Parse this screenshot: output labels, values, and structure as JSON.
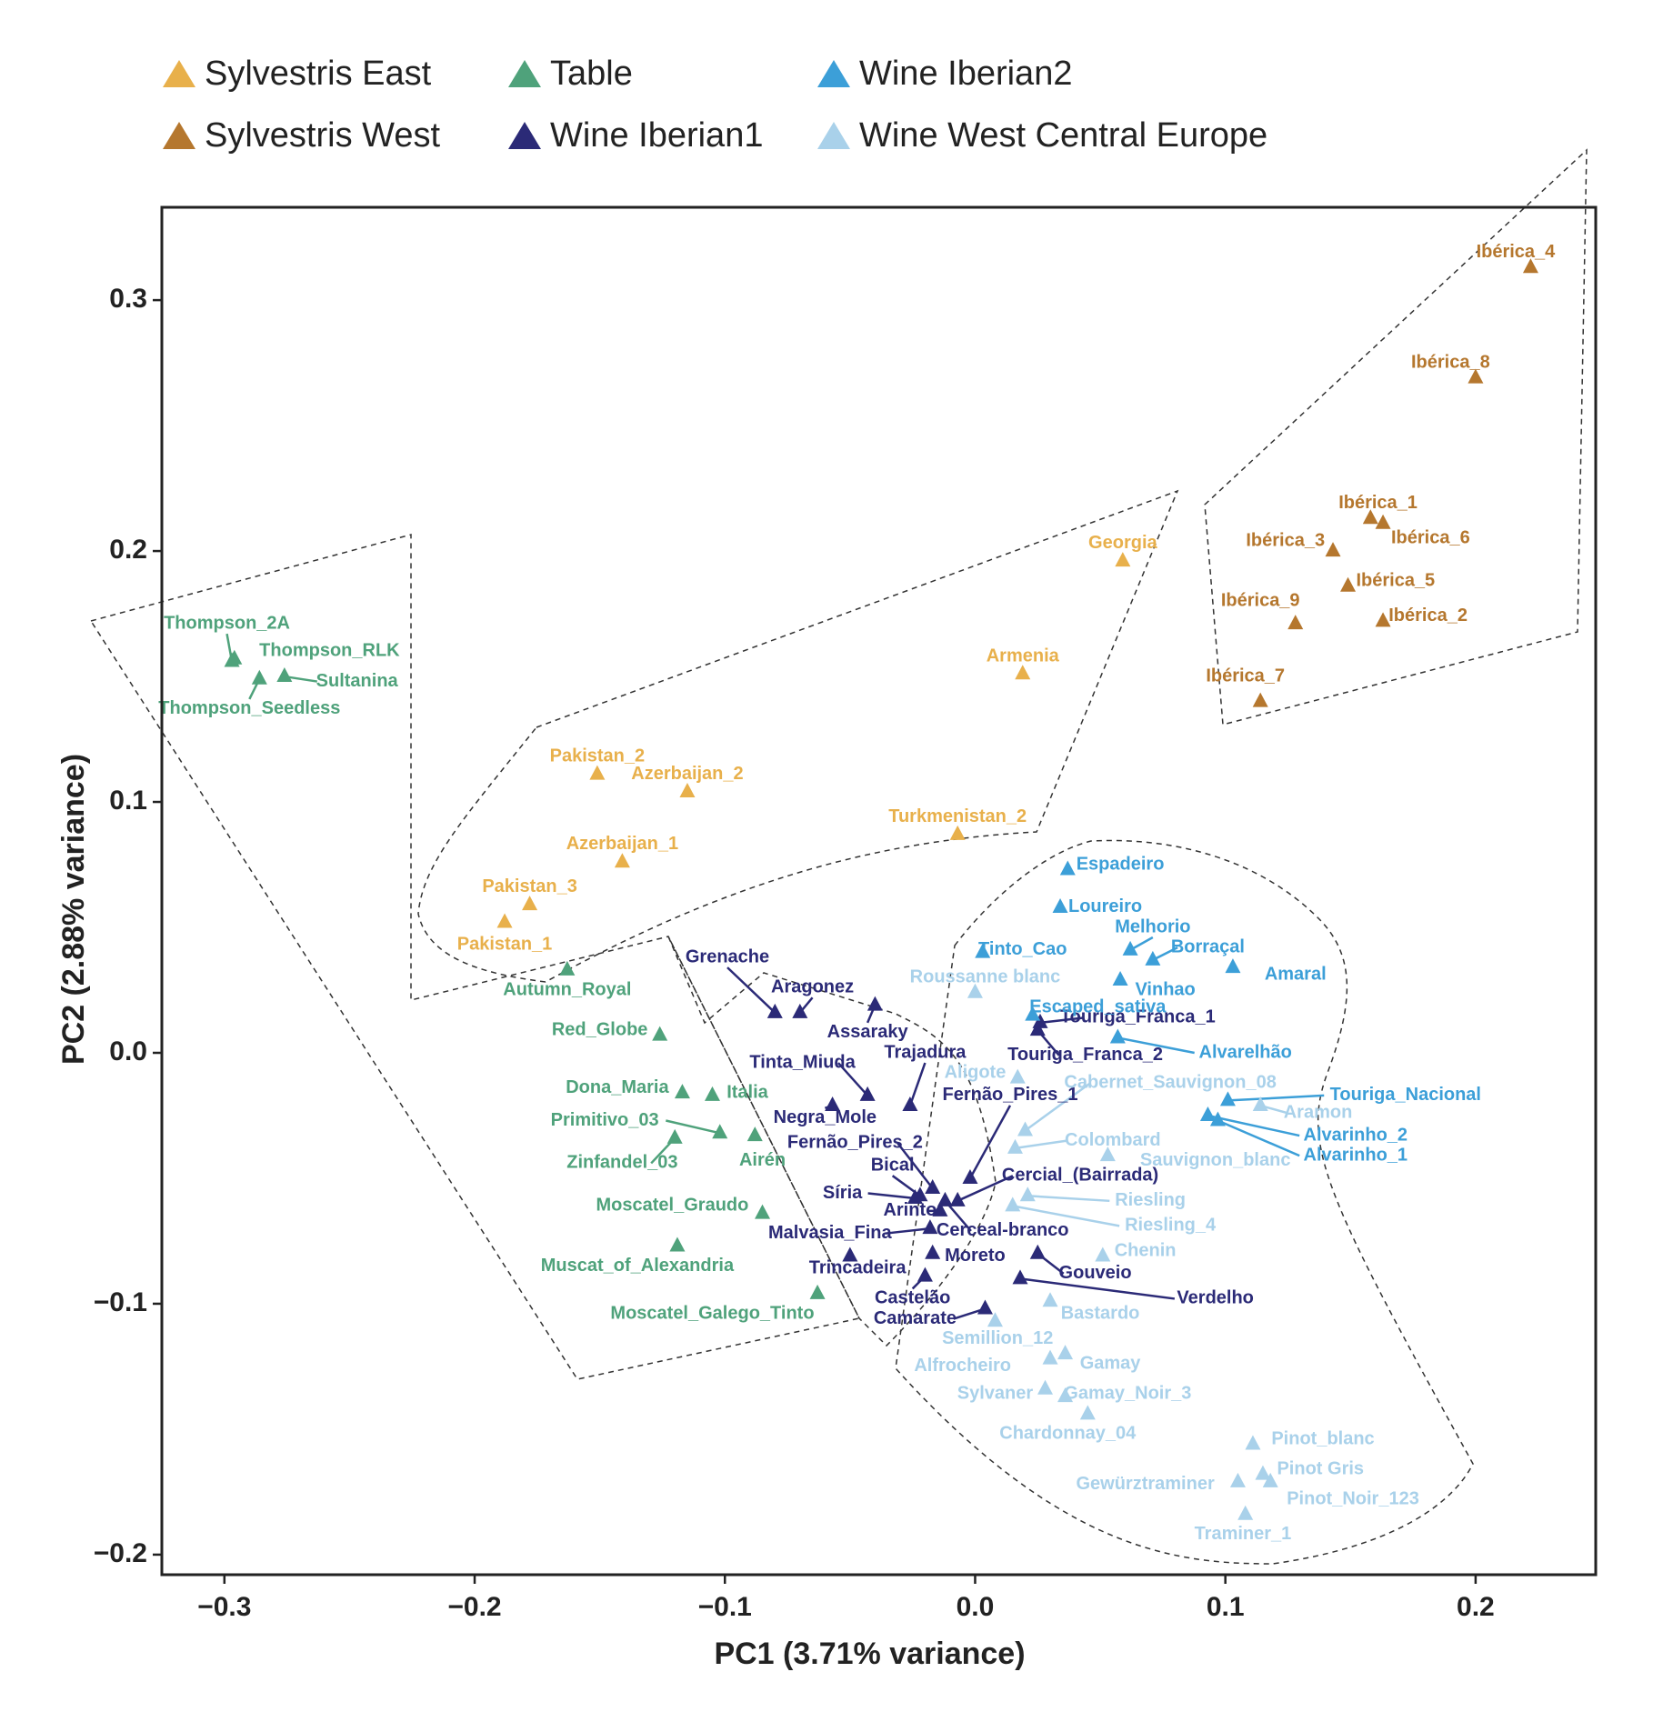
{
  "chart_data": {
    "type": "scatter",
    "xlabel": "PC1 (3.71% variance)",
    "ylabel": "PC2 (2.88% variance)",
    "xlim": [
      -0.325,
      0.248
    ],
    "ylim": [
      -0.208,
      0.337
    ],
    "xticks": [
      -0.3,
      -0.2,
      -0.1,
      0.0,
      0.1,
      0.2
    ],
    "xtick_labels": [
      "−0.3",
      "−0.2",
      "−0.1",
      "0.0",
      "0.1",
      "0.2"
    ],
    "yticks": [
      0.3,
      0.2,
      0.1,
      0.0,
      -0.1,
      -0.2
    ],
    "ytick_labels": [
      "0.3",
      "0.2",
      "0.1",
      "0.0",
      "−0.1",
      "−0.2"
    ],
    "legend_position": "top",
    "grid": false,
    "series": [
      {
        "name": "Sylvestris East",
        "color": "#E8B04B",
        "points": [
          {
            "label": "Georgia",
            "x": 0.059,
            "y": 0.196,
            "lx": 0.059,
            "ly": 0.203
          },
          {
            "label": "Armenia",
            "x": 0.019,
            "y": 0.151,
            "lx": 0.019,
            "ly": 0.158
          },
          {
            "label": "Pakistan_2",
            "x": -0.151,
            "y": 0.111,
            "lx": -0.151,
            "ly": 0.118
          },
          {
            "label": "Azerbaijan_2",
            "x": -0.115,
            "y": 0.104,
            "lx": -0.115,
            "ly": 0.111
          },
          {
            "label": "Turkmenistan_2",
            "x": -0.007,
            "y": 0.087,
            "lx": -0.007,
            "ly": 0.094
          },
          {
            "label": "Azerbaijan_1",
            "x": -0.141,
            "y": 0.076,
            "lx": -0.141,
            "ly": 0.083
          },
          {
            "label": "Pakistan_3",
            "x": -0.178,
            "y": 0.059,
            "lx": -0.178,
            "ly": 0.066
          },
          {
            "label": "Pakistan_1",
            "x": -0.188,
            "y": 0.052,
            "lx": -0.188,
            "ly": 0.043
          }
        ]
      },
      {
        "name": "Sylvestris West",
        "color": "#B5772E",
        "points": [
          {
            "label": "Ibérica_4",
            "x": 0.222,
            "y": 0.313,
            "lx": 0.216,
            "ly": 0.319
          },
          {
            "label": "Ibérica_8",
            "x": 0.2,
            "y": 0.269,
            "lx": 0.19,
            "ly": 0.275
          },
          {
            "label": "Ibérica_1",
            "x": 0.158,
            "y": 0.213,
            "lx": 0.161,
            "ly": 0.219
          },
          {
            "label": "Ibérica_6",
            "x": 0.163,
            "y": 0.211,
            "lx": 0.182,
            "ly": 0.205
          },
          {
            "label": "Ibérica_3",
            "x": 0.143,
            "y": 0.2,
            "lx": 0.124,
            "ly": 0.204
          },
          {
            "label": "Ibérica_5",
            "x": 0.149,
            "y": 0.186,
            "lx": 0.168,
            "ly": 0.188
          },
          {
            "label": "Ibérica_9",
            "x": 0.128,
            "y": 0.171,
            "lx": 0.114,
            "ly": 0.18
          },
          {
            "label": "Ibérica_2",
            "x": 0.163,
            "y": 0.172,
            "lx": 0.181,
            "ly": 0.174
          },
          {
            "label": "Ibérica_7",
            "x": 0.114,
            "y": 0.14,
            "lx": 0.108,
            "ly": 0.15
          }
        ]
      },
      {
        "name": "Table",
        "color": "#4FA27B",
        "points": [
          {
            "label": "Thompson_2A",
            "x": -0.297,
            "y": 0.156,
            "lx": -0.299,
            "ly": 0.171,
            "line": true
          },
          {
            "label": "Thompson_RLK",
            "x": -0.296,
            "y": 0.157,
            "lx": -0.258,
            "ly": 0.16
          },
          {
            "label": "Sultanina",
            "x": -0.276,
            "y": 0.15,
            "lx": -0.247,
            "ly": 0.148,
            "line": true
          },
          {
            "label": "Thompson_Seedless",
            "x": -0.286,
            "y": 0.149,
            "lx": -0.29,
            "ly": 0.137,
            "line": true
          },
          {
            "label": "Autumn_Royal",
            "x": -0.163,
            "y": 0.033,
            "lx": -0.163,
            "ly": 0.025
          },
          {
            "label": "Red_Globe",
            "x": -0.126,
            "y": 0.007,
            "lx": -0.15,
            "ly": 0.009
          },
          {
            "label": "Dona_Maria",
            "x": -0.117,
            "y": -0.016,
            "lx": -0.143,
            "ly": -0.014
          },
          {
            "label": "Italia",
            "x": -0.105,
            "y": -0.017,
            "lx": -0.091,
            "ly": -0.016
          },
          {
            "label": "Primitivo_03",
            "x": -0.102,
            "y": -0.032,
            "lx": -0.148,
            "ly": -0.027,
            "line": true
          },
          {
            "label": "Airén",
            "x": -0.088,
            "y": -0.033,
            "lx": -0.085,
            "ly": -0.043
          },
          {
            "label": "Zinfandel_03",
            "x": -0.12,
            "y": -0.034,
            "lx": -0.141,
            "ly": -0.044,
            "line": true
          },
          {
            "label": "Moscatel_Graudo",
            "x": -0.085,
            "y": -0.064,
            "lx": -0.121,
            "ly": -0.061
          },
          {
            "label": "Muscat_of_Alexandria",
            "x": -0.119,
            "y": -0.077,
            "lx": -0.135,
            "ly": -0.085
          },
          {
            "label": "Moscatel_Galego_Tinto",
            "x": -0.063,
            "y": -0.096,
            "lx": -0.105,
            "ly": -0.104
          }
        ]
      },
      {
        "name": "Wine Iberian1",
        "color": "#2B2A77",
        "points": [
          {
            "label": "Grenache",
            "x": -0.08,
            "y": 0.016,
            "lx": -0.099,
            "ly": 0.038,
            "line": true
          },
          {
            "label": "Aragonez",
            "x": -0.07,
            "y": 0.016,
            "lx": -0.065,
            "ly": 0.026,
            "line": true
          },
          {
            "label": "Assaraky",
            "x": -0.04,
            "y": 0.019,
            "lx": -0.043,
            "ly": 0.008,
            "line": true
          },
          {
            "label": "Tinta_Miuda",
            "x": -0.043,
            "y": -0.017,
            "lx": -0.069,
            "ly": -0.004,
            "line": true
          },
          {
            "label": "Negra_Mole",
            "x": -0.057,
            "y": -0.021,
            "lx": -0.06,
            "ly": -0.026,
            "line": true
          },
          {
            "label": "Trajadura",
            "x": -0.026,
            "y": -0.021,
            "lx": -0.02,
            "ly": 0.0,
            "line": true
          },
          {
            "label": "Fernão_Pires_1",
            "x": -0.002,
            "y": -0.05,
            "lx": 0.014,
            "ly": -0.017,
            "line": true
          },
          {
            "label": "Fernão_Pires_2",
            "x": -0.017,
            "y": -0.054,
            "lx": -0.048,
            "ly": -0.036,
            "line": true
          },
          {
            "label": "Bical",
            "x": -0.022,
            "y": -0.057,
            "lx": -0.033,
            "ly": -0.045,
            "line": true
          },
          {
            "label": "Cercial_(Bairrada)",
            "x": -0.007,
            "y": -0.059,
            "lx": 0.042,
            "ly": -0.049,
            "line": true
          },
          {
            "label": "Síria",
            "x": -0.024,
            "y": -0.058,
            "lx": -0.053,
            "ly": -0.056,
            "line": true
          },
          {
            "label": "Arinto",
            "x": -0.014,
            "y": -0.063,
            "lx": -0.026,
            "ly": -0.063,
            "line": true
          },
          {
            "label": "Cerceal-branco",
            "x": -0.012,
            "y": -0.059,
            "lx": 0.011,
            "ly": -0.071,
            "line": true
          },
          {
            "label": "Malvasia_Fina",
            "x": -0.018,
            "y": -0.07,
            "lx": -0.058,
            "ly": -0.072,
            "line": true
          },
          {
            "label": "Moreto",
            "x": -0.017,
            "y": -0.08,
            "lx": 0.0,
            "ly": -0.081
          },
          {
            "label": "Trincadeira",
            "x": -0.05,
            "y": -0.081,
            "lx": -0.047,
            "ly": -0.086
          },
          {
            "label": "Gouveio",
            "x": 0.025,
            "y": -0.08,
            "lx": 0.048,
            "ly": -0.088,
            "line": true
          },
          {
            "label": "Castelão",
            "x": -0.02,
            "y": -0.089,
            "lx": -0.025,
            "ly": -0.098,
            "line": true
          },
          {
            "label": "Verdelho",
            "x": 0.018,
            "y": -0.09,
            "lx": 0.096,
            "ly": -0.098,
            "line": true
          },
          {
            "label": "Camarate",
            "x": 0.004,
            "y": -0.102,
            "lx": -0.024,
            "ly": -0.106,
            "line": true
          },
          {
            "label": "Touriga_Franca_1",
            "x": 0.026,
            "y": 0.012,
            "lx": 0.065,
            "ly": 0.014,
            "line": true
          },
          {
            "label": "Touriga_Franca_2",
            "x": 0.025,
            "y": 0.009,
            "lx": 0.044,
            "ly": -0.001,
            "line": true
          }
        ]
      },
      {
        "name": "Wine Iberian2",
        "color": "#3C9FD8",
        "points": [
          {
            "label": "Espadeiro",
            "x": 0.037,
            "y": 0.073,
            "lx": 0.058,
            "ly": 0.075
          },
          {
            "label": "Loureiro",
            "x": 0.034,
            "y": 0.058,
            "lx": 0.052,
            "ly": 0.058
          },
          {
            "label": "Melhorio",
            "x": 0.062,
            "y": 0.041,
            "lx": 0.071,
            "ly": 0.05,
            "line": true
          },
          {
            "label": "Tinto_Cao",
            "x": 0.003,
            "y": 0.04,
            "lx": 0.019,
            "ly": 0.041
          },
          {
            "label": "Borraçal",
            "x": 0.071,
            "y": 0.037,
            "lx": 0.093,
            "ly": 0.042,
            "line": true
          },
          {
            "label": "Amaral",
            "x": 0.103,
            "y": 0.034,
            "lx": 0.128,
            "ly": 0.031
          },
          {
            "label": "Vinhao",
            "x": 0.058,
            "y": 0.029,
            "lx": 0.076,
            "ly": 0.025
          },
          {
            "label": "Escaped_sativa",
            "x": 0.023,
            "y": 0.015,
            "lx": 0.049,
            "ly": 0.018
          },
          {
            "label": "Alvarelhão",
            "x": 0.057,
            "y": 0.006,
            "lx": 0.108,
            "ly": 0.0,
            "line": true
          },
          {
            "label": "Touriga_Nacional",
            "x": 0.101,
            "y": -0.019,
            "lx": 0.172,
            "ly": -0.017,
            "line": true
          },
          {
            "label": "Alvarinho_2",
            "x": 0.093,
            "y": -0.025,
            "lx": 0.152,
            "ly": -0.033,
            "line": true
          },
          {
            "label": "Alvarinho_1",
            "x": 0.097,
            "y": -0.027,
            "lx": 0.152,
            "ly": -0.041,
            "line": true
          }
        ]
      },
      {
        "name": "Wine West Central Europe",
        "color": "#A9D1EA",
        "points": [
          {
            "label": "Roussanne blanc",
            "x": 0.0,
            "y": 0.024,
            "lx": 0.004,
            "ly": 0.03
          },
          {
            "label": "Aligote",
            "x": 0.017,
            "y": -0.01,
            "lx": 0.0,
            "ly": -0.008
          },
          {
            "label": "Cabernet_Sauvignon_08",
            "x": 0.02,
            "y": -0.031,
            "lx": 0.078,
            "ly": -0.012,
            "line": true
          },
          {
            "label": "Aramon",
            "x": 0.114,
            "y": -0.021,
            "lx": 0.137,
            "ly": -0.024,
            "line": true
          },
          {
            "label": "Colombard",
            "x": 0.016,
            "y": -0.038,
            "lx": 0.055,
            "ly": -0.035,
            "line": true
          },
          {
            "label": "Sauvignon_blanc",
            "x": 0.053,
            "y": -0.041,
            "lx": 0.096,
            "ly": -0.043
          },
          {
            "label": "Riesling",
            "x": 0.021,
            "y": -0.057,
            "lx": 0.07,
            "ly": -0.059,
            "line": true
          },
          {
            "label": "Riesling_4",
            "x": 0.015,
            "y": -0.061,
            "lx": 0.078,
            "ly": -0.069,
            "line": true
          },
          {
            "label": "Chenin",
            "x": 0.051,
            "y": -0.081,
            "lx": 0.068,
            "ly": -0.079
          },
          {
            "label": "Bastardo",
            "x": 0.03,
            "y": -0.099,
            "lx": 0.05,
            "ly": -0.104
          },
          {
            "label": "Semillion_12",
            "x": 0.008,
            "y": -0.107,
            "lx": 0.009,
            "ly": -0.114
          },
          {
            "label": "Gamay",
            "x": 0.036,
            "y": -0.12,
            "lx": 0.054,
            "ly": -0.124
          },
          {
            "label": "Alfrocheiro",
            "x": 0.03,
            "y": -0.122,
            "lx": -0.005,
            "ly": -0.125
          },
          {
            "label": "Sylvaner",
            "x": 0.028,
            "y": -0.134,
            "lx": 0.008,
            "ly": -0.136
          },
          {
            "label": "Gamay_Noir_3",
            "x": 0.036,
            "y": -0.137,
            "lx": 0.061,
            "ly": -0.136
          },
          {
            "label": "Chardonnay_04",
            "x": 0.045,
            "y": -0.144,
            "lx": 0.037,
            "ly": -0.152
          },
          {
            "label": "Pinot_blanc",
            "x": 0.111,
            "y": -0.156,
            "lx": 0.139,
            "ly": -0.154
          },
          {
            "label": "Pinot Gris",
            "x": 0.115,
            "y": -0.168,
            "lx": 0.138,
            "ly": -0.166
          },
          {
            "label": "Gewürztraminer",
            "x": 0.105,
            "y": -0.171,
            "lx": 0.068,
            "ly": -0.172
          },
          {
            "label": "Pinot_Noir_123",
            "x": 0.118,
            "y": -0.171,
            "lx": 0.151,
            "ly": -0.178
          },
          {
            "label": "Traminer_1",
            "x": 0.108,
            "y": -0.184,
            "lx": 0.107,
            "ly": -0.192
          }
        ]
      }
    ]
  }
}
